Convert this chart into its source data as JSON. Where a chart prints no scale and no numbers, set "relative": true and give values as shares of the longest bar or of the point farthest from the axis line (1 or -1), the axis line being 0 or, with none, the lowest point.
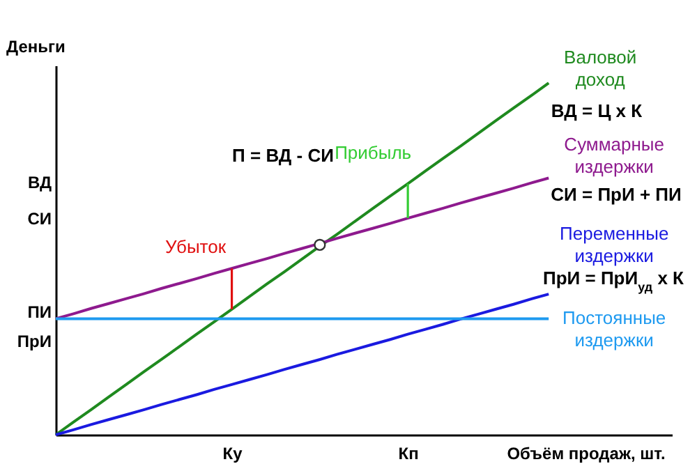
{
  "chart_data": {
    "type": "line",
    "relative": true,
    "xlabel": "Объём продаж, шт.",
    "ylabel": "Деньги",
    "categories": [
      null,
      null,
      null,
      null,
      null,
      null,
      null,
      null,
      null,
      null,
      "Ку",
      null,
      null,
      null,
      null,
      null,
      null,
      null,
      null,
      null,
      "Кп",
      null,
      null,
      null,
      null,
      null,
      null,
      null,
      null,
      null,
      null,
      null,
      null,
      null,
      null,
      null
    ],
    "series": [
      {
        "name": "Валовой доход",
        "color": "#1f8a1f",
        "values": [
          0,
          0.036,
          0.071,
          0.107,
          0.143,
          0.179,
          0.214,
          0.25,
          0.286,
          0.321,
          0.357,
          0.393,
          0.429,
          0.464,
          0.5,
          0.536,
          0.571,
          0.607,
          0.643,
          0.679,
          0.714,
          0.75,
          0.786,
          0.821,
          0.857,
          0.893,
          0.929,
          0.964,
          1,
          null,
          null,
          null,
          null,
          null,
          null,
          null
        ]
      },
      {
        "name": "Суммарные издержки",
        "color": "#8e1a8e",
        "values": [
          0.33,
          0.344,
          0.359,
          0.373,
          0.387,
          0.401,
          0.416,
          0.43,
          0.444,
          0.459,
          0.473,
          0.487,
          0.501,
          0.516,
          0.53,
          0.544,
          0.559,
          0.573,
          0.587,
          0.601,
          0.616,
          0.63,
          0.644,
          0.659,
          0.673,
          0.687,
          0.701,
          0.716,
          0.73,
          null,
          null,
          null,
          null,
          null,
          null,
          null
        ]
      },
      {
        "name": "Переменные издержки",
        "color": "#1a1ae0",
        "values": [
          0,
          0.014,
          0.029,
          0.043,
          0.057,
          0.071,
          0.086,
          0.1,
          0.114,
          0.129,
          0.143,
          0.157,
          0.171,
          0.186,
          0.2,
          0.214,
          0.229,
          0.243,
          0.257,
          0.271,
          0.286,
          0.3,
          0.314,
          0.329,
          0.343,
          0.357,
          0.371,
          0.386,
          0.4,
          null,
          null,
          null,
          null,
          null,
          null,
          null
        ]
      },
      {
        "name": "Постоянные издержки",
        "color": "#1e9af0",
        "values": [
          0.33,
          0.33,
          0.33,
          0.33,
          0.33,
          0.33,
          0.33,
          0.33,
          0.33,
          0.33,
          0.33,
          0.33,
          0.33,
          0.33,
          0.33,
          0.33,
          0.33,
          0.33,
          0.33,
          0.33,
          0.33,
          0.33,
          0.33,
          0.33,
          0.33,
          0.33,
          0.33,
          0.33,
          0.33,
          null,
          null,
          null,
          null,
          null,
          null,
          null
        ]
      },
      {
        "type": "scatter",
        "color": "#333333",
        "values": [
          null,
          null,
          null,
          null,
          null,
          null,
          null,
          null,
          null,
          null,
          null,
          null,
          null,
          null,
          null,
          0.54,
          null,
          null,
          null,
          null,
          null,
          null,
          null,
          null,
          null,
          null,
          null,
          null,
          null,
          null,
          null,
          null,
          null,
          null,
          null,
          null
        ]
      }
    ],
    "annotations": [
      {
        "text": "Прибыль",
        "x": "Кп",
        "y": 0.714
      },
      "П = ВД - СИ",
      {
        "text": "Убыток",
        "x": "Ку",
        "y": 0.473
      },
      "ВД = Ц х К",
      "СИ = ПрИ + ПИ",
      "ПрИ = ПрИ$_{уд}$ х К",
      "ВД",
      "СИ",
      "ПИ",
      "ПрИ"
    ]
  }
}
